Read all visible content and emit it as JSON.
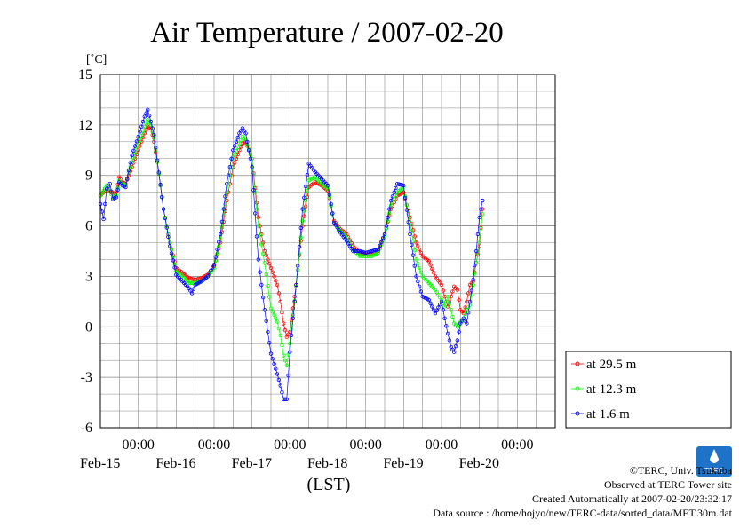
{
  "chart_data": {
    "type": "line",
    "title": "Air Temperature / 2007-02-20",
    "ylabel": "[˚C]",
    "xlabel": "(LST)",
    "ylim": [
      -6,
      15
    ],
    "yticks": [
      15,
      12,
      9,
      6,
      3,
      0,
      -3,
      -6
    ],
    "xlim": [
      "2007-02-14 12:00",
      "2007-02-20 12:00"
    ],
    "time_tick_label": "00:00",
    "x_ticks": [
      "2007-02-15 00:00",
      "2007-02-16 00:00",
      "2007-02-17 00:00",
      "2007-02-18 00:00",
      "2007-02-19 00:00",
      "2007-02-20 00:00"
    ],
    "date_labels": [
      "Feb-15",
      "Feb-16",
      "Feb-17",
      "Feb-18",
      "Feb-19",
      "Feb-20"
    ],
    "grid": true,
    "legend_position": "bottom-right",
    "series": [
      {
        "name": "at 29.5 m",
        "color": "#ff0000",
        "x": [
          "2007-02-14 12:00",
          "2007-02-14 14:00",
          "2007-02-14 16:00",
          "2007-02-14 17:00",
          "2007-02-14 18:00",
          "2007-02-14 19:00",
          "2007-02-14 20:00",
          "2007-02-14 21:00",
          "2007-02-14 22:00",
          "2007-02-15 00:00",
          "2007-02-15 02:00",
          "2007-02-15 03:00",
          "2007-02-15 04:00",
          "2007-02-15 05:00",
          "2007-02-15 06:00",
          "2007-02-15 08:00",
          "2007-02-15 10:00",
          "2007-02-15 12:00",
          "2007-02-15 14:00",
          "2007-02-15 16:00",
          "2007-02-15 18:00",
          "2007-02-15 20:00",
          "2007-02-15 22:00",
          "2007-02-16 00:00",
          "2007-02-16 02:00",
          "2007-02-16 04:00",
          "2007-02-16 06:00",
          "2007-02-16 08:00",
          "2007-02-16 09:00",
          "2007-02-16 10:00",
          "2007-02-16 12:00",
          "2007-02-16 14:00",
          "2007-02-16 16:00",
          "2007-02-16 18:00",
          "2007-02-16 20:00",
          "2007-02-16 21:00",
          "2007-02-16 22:00",
          "2007-02-16 23:00",
          "2007-02-17 00:00",
          "2007-02-17 02:00",
          "2007-02-17 04:00",
          "2007-02-17 06:00",
          "2007-02-17 08:00",
          "2007-02-17 10:00",
          "2007-02-17 12:00",
          "2007-02-17 14:00",
          "2007-02-17 16:00",
          "2007-02-17 18:00",
          "2007-02-17 20:00",
          "2007-02-17 22:00",
          "2007-02-18 00:00",
          "2007-02-18 02:00",
          "2007-02-18 04:00",
          "2007-02-18 06:00",
          "2007-02-18 08:00",
          "2007-02-18 10:00",
          "2007-02-18 12:00",
          "2007-02-18 14:00",
          "2007-02-18 16:00",
          "2007-02-18 18:00",
          "2007-02-18 20:00",
          "2007-02-18 22:00",
          "2007-02-19 00:00",
          "2007-02-19 01:00",
          "2007-02-19 02:00",
          "2007-02-19 03:00",
          "2007-02-19 04:00",
          "2007-02-19 05:00",
          "2007-02-19 06:00",
          "2007-02-19 07:00",
          "2007-02-19 08:00",
          "2007-02-19 09:00",
          "2007-02-19 10:00",
          "2007-02-19 11:00",
          "2007-02-19 12:00",
          "2007-02-19 13:00"
        ],
        "y": [
          7.8,
          8.2,
          7.9,
          8.0,
          8.9,
          8.6,
          8.5,
          9.0,
          9.5,
          10.5,
          11.5,
          11.9,
          11.8,
          11.0,
          9.8,
          7.0,
          5.0,
          3.5,
          3.2,
          2.9,
          2.8,
          2.9,
          3.1,
          3.6,
          5.0,
          7.5,
          9.5,
          10.5,
          10.9,
          11.0,
          10.0,
          6.5,
          4.5,
          3.5,
          2.5,
          1.5,
          0.2,
          -0.6,
          -0.3,
          2.5,
          6.0,
          8.3,
          8.6,
          8.4,
          8.1,
          6.3,
          5.8,
          5.5,
          4.8,
          4.4,
          4.3,
          4.3,
          4.5,
          5.5,
          7.0,
          7.8,
          8.0,
          6.5,
          5.0,
          4.2,
          3.9,
          3.0,
          2.5,
          1.8,
          1.2,
          1.8,
          2.4,
          2.2,
          1.0,
          0.8,
          1.5,
          2.5,
          2.7,
          3.8,
          4.8,
          7.0
        ]
      },
      {
        "name": "at 12.3 m",
        "color": "#00ff00",
        "x": [
          "2007-02-14 12:00",
          "2007-02-14 14:00",
          "2007-02-14 16:00",
          "2007-02-14 17:00",
          "2007-02-14 18:00",
          "2007-02-14 19:00",
          "2007-02-14 20:00",
          "2007-02-14 21:00",
          "2007-02-14 22:00",
          "2007-02-15 00:00",
          "2007-02-15 02:00",
          "2007-02-15 03:00",
          "2007-02-15 04:00",
          "2007-02-15 05:00",
          "2007-02-15 06:00",
          "2007-02-15 08:00",
          "2007-02-15 10:00",
          "2007-02-15 12:00",
          "2007-02-15 14:00",
          "2007-02-15 16:00",
          "2007-02-15 18:00",
          "2007-02-15 20:00",
          "2007-02-15 22:00",
          "2007-02-16 00:00",
          "2007-02-16 02:00",
          "2007-02-16 04:00",
          "2007-02-16 06:00",
          "2007-02-16 08:00",
          "2007-02-16 09:00",
          "2007-02-16 10:00",
          "2007-02-16 12:00",
          "2007-02-16 14:00",
          "2007-02-16 16:00",
          "2007-02-16 18:00",
          "2007-02-16 20:00",
          "2007-02-16 21:00",
          "2007-02-16 22:00",
          "2007-02-16 23:00",
          "2007-02-17 00:00",
          "2007-02-17 02:00",
          "2007-02-17 04:00",
          "2007-02-17 06:00",
          "2007-02-17 08:00",
          "2007-02-17 10:00",
          "2007-02-17 12:00",
          "2007-02-17 14:00",
          "2007-02-17 16:00",
          "2007-02-17 18:00",
          "2007-02-17 20:00",
          "2007-02-17 22:00",
          "2007-02-18 00:00",
          "2007-02-18 02:00",
          "2007-02-18 04:00",
          "2007-02-18 06:00",
          "2007-02-18 08:00",
          "2007-02-18 10:00",
          "2007-02-18 12:00",
          "2007-02-18 14:00",
          "2007-02-18 16:00",
          "2007-02-18 18:00",
          "2007-02-18 20:00",
          "2007-02-18 22:00",
          "2007-02-19 00:00",
          "2007-02-19 01:00",
          "2007-02-19 02:00",
          "2007-02-19 03:00",
          "2007-02-19 04:00",
          "2007-02-19 05:00",
          "2007-02-19 06:00",
          "2007-02-19 07:00",
          "2007-02-19 08:00",
          "2007-02-19 09:00",
          "2007-02-19 10:00",
          "2007-02-19 11:00",
          "2007-02-19 12:00",
          "2007-02-19 13:00"
        ],
        "y": [
          7.8,
          8.4,
          7.7,
          7.8,
          8.7,
          8.5,
          8.4,
          9.2,
          9.8,
          10.8,
          11.9,
          12.3,
          12.0,
          11.2,
          9.8,
          7.0,
          5.0,
          3.3,
          3.0,
          2.6,
          2.6,
          2.7,
          3.0,
          3.5,
          5.2,
          8.0,
          10.0,
          10.9,
          11.3,
          11.1,
          10.0,
          6.0,
          3.8,
          1.1,
          0.3,
          -0.5,
          -1.7,
          -2.3,
          -1.0,
          2.4,
          6.3,
          8.7,
          8.9,
          8.5,
          8.2,
          6.2,
          5.7,
          5.3,
          4.6,
          4.2,
          4.2,
          4.2,
          4.4,
          5.4,
          7.2,
          8.0,
          8.3,
          6.2,
          4.0,
          3.0,
          2.6,
          2.2,
          1.6,
          1.2,
          1.8,
          1.0,
          0.2,
          0.0,
          0.3,
          0.5,
          1.0,
          1.3,
          2.5,
          3.8,
          5.0,
          6.7
        ]
      },
      {
        "name": "at 1.6 m",
        "color": "#0000ff",
        "x": [
          "2007-02-14 12:00",
          "2007-02-14 13:00",
          "2007-02-14 14:00",
          "2007-02-14 15:00",
          "2007-02-14 16:00",
          "2007-02-14 17:00",
          "2007-02-14 18:00",
          "2007-02-14 19:00",
          "2007-02-14 20:00",
          "2007-02-14 21:00",
          "2007-02-14 22:00",
          "2007-02-15 00:00",
          "2007-02-15 02:00",
          "2007-02-15 03:00",
          "2007-02-15 04:00",
          "2007-02-15 05:00",
          "2007-02-15 06:00",
          "2007-02-15 08:00",
          "2007-02-15 10:00",
          "2007-02-15 12:00",
          "2007-02-15 14:00",
          "2007-02-15 16:00",
          "2007-02-15 17:00",
          "2007-02-15 18:00",
          "2007-02-15 20:00",
          "2007-02-15 22:00",
          "2007-02-16 00:00",
          "2007-02-16 02:00",
          "2007-02-16 04:00",
          "2007-02-16 06:00",
          "2007-02-16 08:00",
          "2007-02-16 09:00",
          "2007-02-16 10:00",
          "2007-02-16 12:00",
          "2007-02-16 14:00",
          "2007-02-16 16:00",
          "2007-02-16 18:00",
          "2007-02-16 20:00",
          "2007-02-16 21:00",
          "2007-02-16 22:00",
          "2007-02-16 23:00",
          "2007-02-17 00:00",
          "2007-02-17 02:00",
          "2007-02-17 04:00",
          "2007-02-17 06:00",
          "2007-02-17 08:00",
          "2007-02-17 10:00",
          "2007-02-17 12:00",
          "2007-02-17 14:00",
          "2007-02-17 16:00",
          "2007-02-17 18:00",
          "2007-02-17 20:00",
          "2007-02-17 22:00",
          "2007-02-18 00:00",
          "2007-02-18 02:00",
          "2007-02-18 04:00",
          "2007-02-18 06:00",
          "2007-02-18 08:00",
          "2007-02-18 10:00",
          "2007-02-18 12:00",
          "2007-02-18 14:00",
          "2007-02-18 16:00",
          "2007-02-18 18:00",
          "2007-02-18 20:00",
          "2007-02-18 22:00",
          "2007-02-19 00:00",
          "2007-02-19 01:00",
          "2007-02-19 02:00",
          "2007-02-19 03:00",
          "2007-02-19 04:00",
          "2007-02-19 05:00",
          "2007-02-19 06:00",
          "2007-02-19 07:00",
          "2007-02-19 08:00",
          "2007-02-19 09:00",
          "2007-02-19 10:00",
          "2007-02-19 11:00",
          "2007-02-19 12:00",
          "2007-02-19 13:00"
        ],
        "y": [
          7.3,
          6.4,
          8.2,
          8.5,
          7.6,
          7.7,
          8.6,
          8.4,
          8.3,
          9.3,
          10.2,
          11.3,
          12.5,
          12.9,
          12.2,
          11.4,
          9.9,
          7.0,
          4.8,
          3.1,
          2.7,
          2.3,
          2.0,
          2.5,
          2.7,
          3.0,
          3.7,
          5.5,
          8.5,
          10.5,
          11.5,
          11.8,
          11.5,
          9.5,
          4.0,
          1.0,
          -1.6,
          -2.8,
          -3.5,
          -4.3,
          -4.3,
          -1.5,
          2.5,
          7.0,
          9.7,
          9.2,
          8.8,
          8.4,
          6.2,
          5.6,
          5.1,
          4.5,
          4.5,
          4.4,
          4.5,
          4.6,
          5.5,
          7.5,
          8.5,
          8.4,
          5.5,
          3.0,
          1.8,
          1.6,
          0.8,
          1.5,
          0.5,
          -0.4,
          -1.2,
          -1.5,
          -0.8,
          0.2,
          0.5,
          0.2,
          1.5,
          2.8,
          4.5,
          6.5,
          7.5
        ]
      }
    ]
  },
  "footer": {
    "copyright": "©TERC, Univ. Tsukuba",
    "observed": "Observed at TERC Tower site",
    "created": "Created Automatically at 2007-02-20/23:32:17",
    "source": "Data source : /home/hojyo/new/TERC-data/sorted_data/MET.30m.dat",
    "logo_text": "TERC"
  },
  "colors": {
    "axis": "#000000",
    "grid": "#888888",
    "logo": "#1e73c8"
  }
}
